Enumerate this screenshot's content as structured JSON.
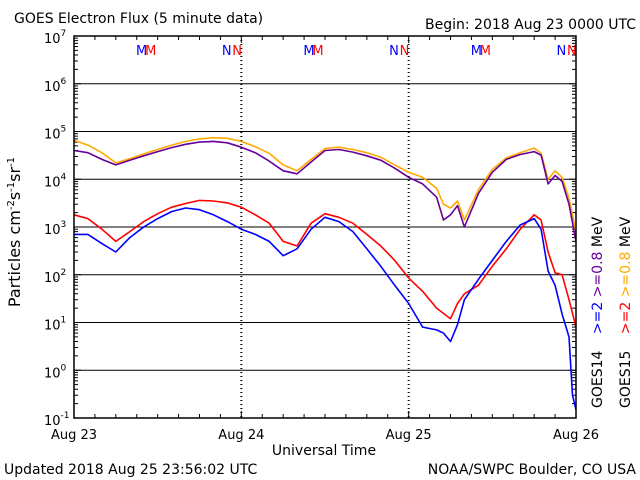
{
  "title": "GOES Electron Flux (5 minute data)",
  "begin": "Begin: 2018 Aug 23 0000 UTC",
  "updated": "Updated 2018 Aug 25 23:56:02 UTC",
  "credit": "NOAA/SWPC Boulder, CO USA",
  "colors": {
    "goes14": "#0000ff",
    "goes15": "#ff0000",
    "goes14_low": "#660099",
    "goes15_low": "#ffaa00"
  },
  "chart_data": {
    "type": "line",
    "xlabel": "Universal Time",
    "ylabel": "Particles cm^-2 s^-1 sr^-1",
    "ylog": true,
    "ylim": [
      0.1,
      10000000
    ],
    "xlim": [
      0,
      72
    ],
    "x_units": "hours since 2018 Aug 23 0000 UTC",
    "x_ticks": [
      {
        "x": 0,
        "label": "Aug 23"
      },
      {
        "x": 24,
        "label": "Aug 24"
      },
      {
        "x": 48,
        "label": "Aug 25"
      },
      {
        "x": 72,
        "label": "Aug 26"
      }
    ],
    "y_ticks": [
      {
        "mant": "10",
        "exp": "-1"
      },
      {
        "mant": "10",
        "exp": "0"
      },
      {
        "mant": "10",
        "exp": "1"
      },
      {
        "mant": "10",
        "exp": "2"
      },
      {
        "mant": "10",
        "exp": "3"
      },
      {
        "mant": "10",
        "exp": "4"
      },
      {
        "mant": "10",
        "exp": "5"
      },
      {
        "mant": "10",
        "exp": "6"
      },
      {
        "mant": "10",
        "exp": "7"
      }
    ],
    "threshold": 1000,
    "markers": [
      {
        "x": 9.7,
        "label": "M",
        "color": "#0000ff"
      },
      {
        "x": 11.0,
        "label": "M",
        "color": "#ff0000"
      },
      {
        "x": 21.9,
        "label": "N",
        "color": "#0000ff"
      },
      {
        "x": 23.4,
        "label": "N",
        "color": "#ff0000"
      },
      {
        "x": 33.7,
        "label": "M",
        "color": "#0000ff"
      },
      {
        "x": 35.0,
        "label": "M",
        "color": "#ff0000"
      },
      {
        "x": 45.9,
        "label": "N",
        "color": "#0000ff"
      },
      {
        "x": 47.4,
        "label": "N",
        "color": "#ff0000"
      },
      {
        "x": 57.7,
        "label": "M",
        "color": "#0000ff"
      },
      {
        "x": 59.0,
        "label": "M",
        "color": "#ff0000"
      },
      {
        "x": 69.9,
        "label": "N",
        "color": "#0000ff"
      },
      {
        "x": 71.4,
        "label": "N",
        "color": "#ff0000"
      }
    ],
    "series": [
      {
        "name": "GOES15 >=0.8 MeV",
        "color": "#ffaa00",
        "x": [
          0,
          2,
          4,
          6,
          8,
          10,
          12,
          14,
          16,
          18,
          20,
          22,
          24,
          26,
          28,
          30,
          32,
          34,
          36,
          38,
          40,
          42,
          44,
          46,
          48,
          50,
          52,
          53,
          54,
          55,
          56,
          58,
          60,
          62,
          64,
          66,
          67,
          68,
          69,
          70,
          71,
          72
        ],
        "y": [
          65000,
          52000,
          36000,
          22000,
          27000,
          34000,
          42000,
          52000,
          62000,
          70000,
          74000,
          72000,
          62000,
          48000,
          35000,
          20000,
          15000,
          26000,
          44000,
          47000,
          42000,
          36000,
          29000,
          20000,
          14000,
          11000,
          6500,
          3000,
          2500,
          3500,
          1400,
          6000,
          16000,
          28000,
          36000,
          45000,
          35000,
          10000,
          15000,
          11000,
          4000,
          800
        ]
      },
      {
        "name": "GOES14 >=0.8 MeV",
        "color": "#660099",
        "x": [
          0,
          2,
          4,
          6,
          8,
          10,
          12,
          14,
          16,
          18,
          20,
          22,
          24,
          26,
          28,
          30,
          32,
          34,
          36,
          38,
          40,
          42,
          44,
          46,
          48,
          50,
          52,
          53,
          54,
          55,
          56,
          58,
          60,
          62,
          64,
          66,
          67,
          68,
          69,
          70,
          71,
          72
        ],
        "y": [
          40000,
          36000,
          26000,
          20000,
          25000,
          31000,
          38000,
          46000,
          54000,
          60000,
          62000,
          58000,
          47000,
          36000,
          24000,
          15000,
          13000,
          23000,
          40000,
          42000,
          37000,
          31000,
          25000,
          17000,
          11000,
          8000,
          4200,
          1400,
          1800,
          2800,
          1000,
          5000,
          14000,
          26000,
          33000,
          38000,
          32000,
          8000,
          12000,
          9000,
          3000,
          500
        ]
      },
      {
        "name": "GOES15 >=2 MeV",
        "color": "#ff0000",
        "x": [
          0,
          2,
          4,
          6,
          8,
          10,
          12,
          14,
          16,
          18,
          20,
          22,
          24,
          26,
          28,
          30,
          32,
          34,
          36,
          38,
          40,
          42,
          44,
          46,
          48,
          50,
          52,
          54,
          55,
          56,
          58,
          60,
          62,
          64,
          66,
          67,
          68,
          69,
          70,
          71,
          72
        ],
        "y": [
          1800,
          1500,
          900,
          500,
          800,
          1300,
          1900,
          2600,
          3100,
          3600,
          3500,
          3200,
          2600,
          1800,
          1200,
          500,
          400,
          1200,
          1900,
          1600,
          1200,
          700,
          400,
          200,
          85,
          45,
          20,
          12,
          25,
          40,
          60,
          150,
          350,
          900,
          1800,
          1400,
          300,
          110,
          100,
          30,
          8
        ]
      },
      {
        "name": "GOES14 >=2 MeV",
        "color": "#0000ff",
        "x": [
          0,
          2,
          4,
          6,
          8,
          10,
          12,
          14,
          16,
          18,
          20,
          22,
          24,
          26,
          28,
          30,
          32,
          34,
          36,
          38,
          40,
          42,
          44,
          46,
          48,
          50,
          52,
          53,
          54,
          55,
          56,
          58,
          60,
          62,
          64,
          66,
          67,
          68,
          69,
          70,
          71,
          71.5,
          72
        ],
        "y": [
          700,
          700,
          450,
          300,
          600,
          1000,
          1500,
          2100,
          2500,
          2300,
          1800,
          1300,
          900,
          700,
          500,
          250,
          350,
          900,
          1600,
          1300,
          800,
          350,
          150,
          60,
          25,
          8,
          7,
          6,
          4,
          9,
          30,
          80,
          200,
          500,
          1100,
          1500,
          900,
          120,
          60,
          15,
          5,
          0.3,
          0.15
        ]
      }
    ],
    "legend": {
      "placement": "right",
      "lines": [
        {
          "parts": [
            {
              "text": "GOES14",
              "color": "#000000"
            },
            {
              "text": ">=2",
              "color": "#0000ff"
            },
            {
              "text": ">=0.8",
              "color": "#660099"
            },
            {
              "text": "MeV",
              "color": "#000000"
            }
          ]
        },
        {
          "parts": [
            {
              "text": "GOES15",
              "color": "#000000"
            },
            {
              "text": ">=2",
              "color": "#ff0000"
            },
            {
              "text": ">=0.8",
              "color": "#ffaa00"
            },
            {
              "text": "MeV",
              "color": "#000000"
            }
          ]
        }
      ]
    }
  }
}
